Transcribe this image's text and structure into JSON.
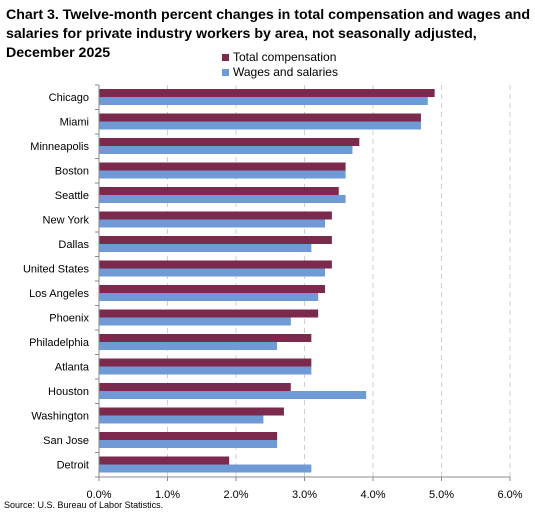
{
  "title": "Chart 3. Twelve-month percent changes in total compensation and wages and salaries for private industry workers by area, not seasonally adjusted, December 2025",
  "source": "Source: U.S. Bureau of Labor Statistics.",
  "colors": {
    "total": "#7b2a4d",
    "wages": "#6f9ad6",
    "grid": "#cfcfcf",
    "axis": "#8a8a8a"
  },
  "chart_data": {
    "type": "bar",
    "orientation": "horizontal",
    "categories": [
      "Chicago",
      "Miami",
      "Minneapolis",
      "Boston",
      "Seattle",
      "New York",
      "Dallas",
      "United States",
      "Los Angeles",
      "Phoenix",
      "Philadelphia",
      "Atlanta",
      "Houston",
      "Washington",
      "San Jose",
      "Detroit"
    ],
    "series": [
      {
        "name": "Total compensation",
        "values": [
          4.9,
          4.7,
          3.8,
          3.6,
          3.5,
          3.4,
          3.4,
          3.4,
          3.3,
          3.2,
          3.1,
          3.1,
          2.8,
          2.7,
          2.6,
          1.9
        ]
      },
      {
        "name": "Wages and salaries",
        "values": [
          4.8,
          4.7,
          3.7,
          3.6,
          3.6,
          3.3,
          3.1,
          3.3,
          3.2,
          2.8,
          2.6,
          3.1,
          3.9,
          2.4,
          2.6,
          3.1
        ]
      }
    ],
    "xlim": [
      0,
      6
    ],
    "xticks": [
      0,
      1,
      2,
      3,
      4,
      5,
      6
    ],
    "xtick_labels": [
      "0.0%",
      "1.0%",
      "2.0%",
      "3.0%",
      "4.0%",
      "5.0%",
      "6.0%"
    ],
    "grid": "vertical dashed",
    "legend_position": "top"
  }
}
